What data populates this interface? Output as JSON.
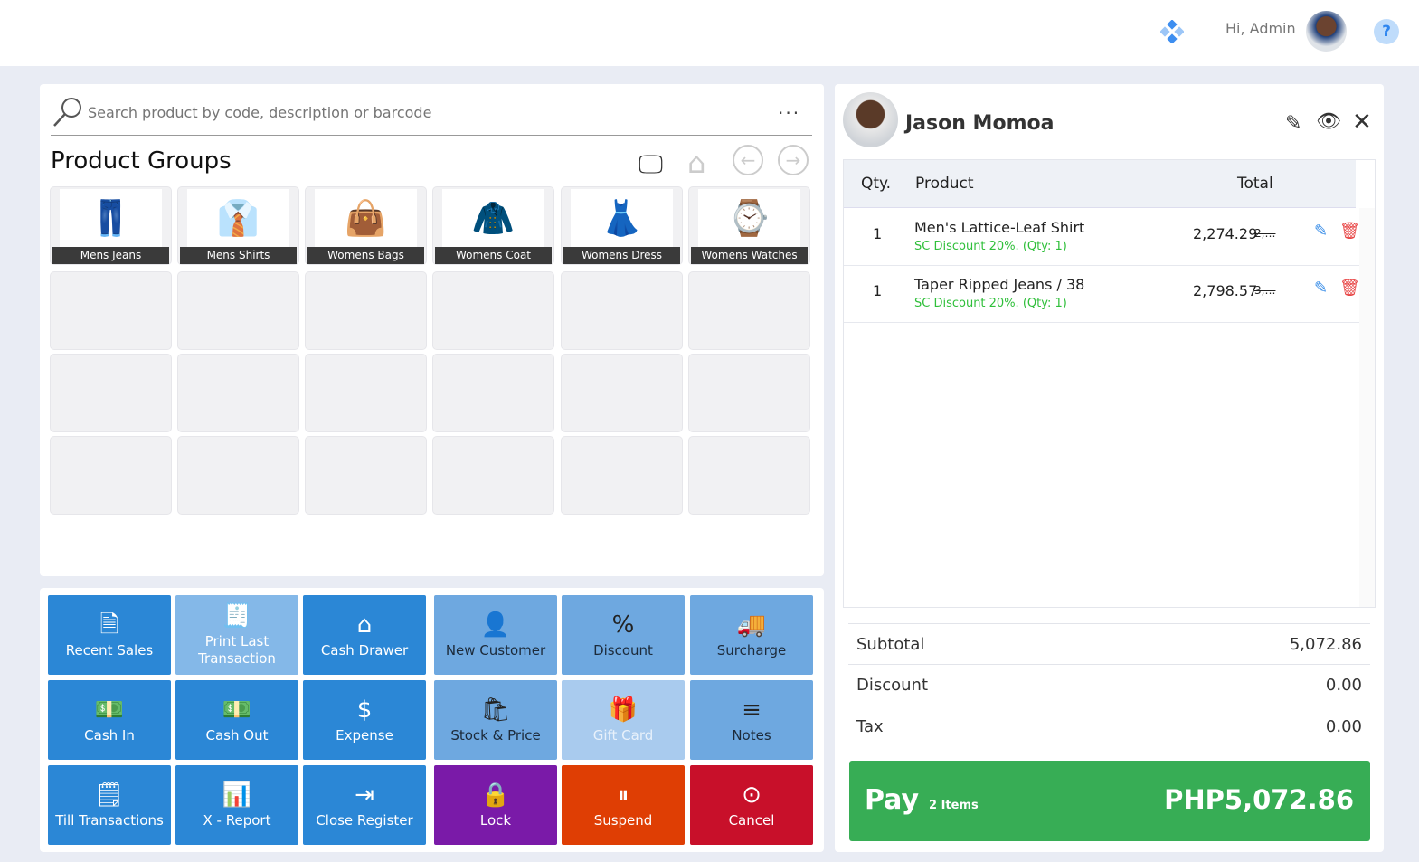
{
  "header": {
    "greeting": "Hi, Admin",
    "help_icon": "question-icon",
    "logo_icon": "diamond-dots-icon"
  },
  "search": {
    "placeholder": "Search product by code, description or barcode",
    "more": "..."
  },
  "product_groups": {
    "title": "Product Groups",
    "items": [
      {
        "label": "Mens Jeans",
        "icon": "👖"
      },
      {
        "label": "Mens Shirts",
        "icon": "👔"
      },
      {
        "label": "Womens Bags",
        "icon": "👜"
      },
      {
        "label": "Womens Coat",
        "icon": "🧥"
      },
      {
        "label": "Womens Dress",
        "icon": "👗"
      },
      {
        "label": "Womens Watches",
        "icon": "⌚"
      }
    ]
  },
  "actions": [
    {
      "label": "Recent Sales",
      "icon": "🗎",
      "color": "#2b87d6"
    },
    {
      "label": "Print Last Transaction",
      "icon": "🧾",
      "color": "#84b8e8"
    },
    {
      "label": "Cash Drawer",
      "icon": "⌂",
      "color": "#2b87d6"
    },
    {
      "label": "New Customer",
      "icon": "👤",
      "color": "#6ea8e0",
      "dark": true
    },
    {
      "label": "Discount",
      "icon": "%",
      "color": "#6ea8e0",
      "dark": true
    },
    {
      "label": "Surcharge",
      "icon": "🚚",
      "color": "#6ea8e0",
      "dark": true
    },
    {
      "label": "Cash In",
      "icon": "💵",
      "color": "#2b87d6"
    },
    {
      "label": "Cash Out",
      "icon": "💵",
      "color": "#2b87d6"
    },
    {
      "label": "Expense",
      "icon": "$",
      "color": "#2b87d6"
    },
    {
      "label": "Stock & Price",
      "icon": "🛍",
      "color": "#6ea8e0",
      "dark": true
    },
    {
      "label": "Gift Card",
      "icon": "🎁",
      "color": "#a9cbee",
      "muted": true
    },
    {
      "label": "Notes",
      "icon": "≡",
      "color": "#6ea8e0",
      "dark": true
    },
    {
      "label": "Till Transactions",
      "icon": "🗒",
      "color": "#2b87d6"
    },
    {
      "label": "X - Report",
      "icon": "📊",
      "color": "#2b87d6"
    },
    {
      "label": "Close Register",
      "icon": "⇥",
      "color": "#2b87d6"
    },
    {
      "label": "Lock",
      "icon": "🔒",
      "color": "#7a1aa8"
    },
    {
      "label": "Suspend",
      "icon": "⏸",
      "color": "#df3e04"
    },
    {
      "label": "Cancel",
      "icon": "⊙",
      "color": "#c8102a"
    }
  ],
  "customer": {
    "name": "Jason Momoa"
  },
  "cart": {
    "headers": {
      "qty": "Qty.",
      "product": "Product",
      "total": "Total"
    },
    "items": [
      {
        "qty": "1",
        "name": "Men's Lattice-Leaf Shirt",
        "discount": "SC Discount 20%.  (Qty: 1)",
        "total": "2,274.29",
        "original": "2,…"
      },
      {
        "qty": "1",
        "name": "Taper Ripped Jeans / 38",
        "discount": "SC Discount 20%.  (Qty: 1)",
        "total": "2,798.57",
        "original": "3,…"
      }
    ]
  },
  "summary": {
    "subtotal_label": "Subtotal",
    "subtotal": "5,072.86",
    "discount_label": "Discount",
    "discount": "0.00",
    "tax_label": "Tax",
    "tax": "0.00"
  },
  "pay": {
    "label": "Pay",
    "items": "2 Items",
    "amount": "PHP5,072.86",
    "color": "#37ad55"
  }
}
